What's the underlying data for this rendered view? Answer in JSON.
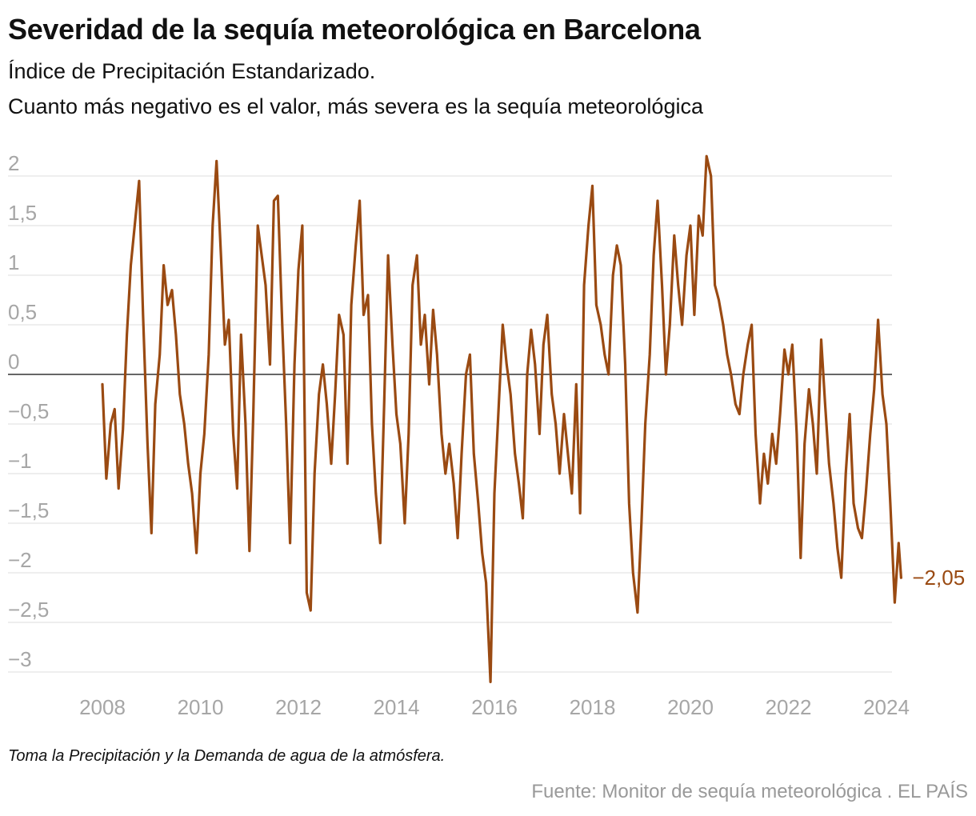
{
  "title": "Severidad de la sequía meteorológica en Barcelona",
  "subtitle_line1": "Índice de Precipitación Estandarizado.",
  "subtitle_line2": "Cuanto más negativo es el valor, más severa es la sequía meteorológica",
  "note": "Toma la Precipitación y la Demanda de agua de la atmósfera.",
  "source": "Fuente: Monitor de sequía meteorológica . EL PAÍS",
  "colors": {
    "line": "#9a4a12",
    "zero_line": "#333333",
    "grid": "#dddddd",
    "tick_text": "#a6a6a6",
    "end_label": "#9a4a12"
  },
  "chart_data": {
    "type": "line",
    "title": "Severidad de la sequía meteorológica en Barcelona",
    "xlabel": "",
    "ylabel": "",
    "xlim": [
      2008,
      2024
    ],
    "ylim": [
      -3.2,
      2.2
    ],
    "grid": true,
    "y_ticks": [
      2,
      1.5,
      1,
      0.5,
      0,
      -0.5,
      -1,
      -1.5,
      -2,
      -2.5,
      -3
    ],
    "y_tick_labels": [
      "2",
      "1,5",
      "1",
      "0,5",
      "0",
      "−0,5",
      "−1",
      "−1,5",
      "−2",
      "−2,5",
      "−3"
    ],
    "x_ticks": [
      2008,
      2010,
      2012,
      2014,
      2016,
      2018,
      2020,
      2022,
      2024
    ],
    "x_tick_labels": [
      "2008",
      "2010",
      "2012",
      "2014",
      "2016",
      "2018",
      "2020",
      "2022",
      "2024"
    ],
    "end_label": "−2,05",
    "series": [
      {
        "points": [
          [
            2008.0,
            -0.1
          ],
          [
            2008.08,
            -1.05
          ],
          [
            2008.17,
            -0.5
          ],
          [
            2008.25,
            -0.35
          ],
          [
            2008.33,
            -1.15
          ],
          [
            2008.42,
            -0.55
          ],
          [
            2008.5,
            0.4
          ],
          [
            2008.58,
            1.1
          ],
          [
            2008.67,
            1.55
          ],
          [
            2008.75,
            1.95
          ],
          [
            2008.83,
            0.6
          ],
          [
            2008.92,
            -0.7
          ],
          [
            2009.0,
            -1.6
          ],
          [
            2009.08,
            -0.3
          ],
          [
            2009.17,
            0.2
          ],
          [
            2009.25,
            1.1
          ],
          [
            2009.33,
            0.7
          ],
          [
            2009.42,
            0.85
          ],
          [
            2009.5,
            0.4
          ],
          [
            2009.58,
            -0.2
          ],
          [
            2009.67,
            -0.5
          ],
          [
            2009.75,
            -0.9
          ],
          [
            2009.83,
            -1.2
          ],
          [
            2009.92,
            -1.8
          ],
          [
            2010.0,
            -1.0
          ],
          [
            2010.08,
            -0.6
          ],
          [
            2010.17,
            0.2
          ],
          [
            2010.25,
            1.5
          ],
          [
            2010.33,
            2.15
          ],
          [
            2010.42,
            1.2
          ],
          [
            2010.5,
            0.3
          ],
          [
            2010.58,
            0.55
          ],
          [
            2010.67,
            -0.6
          ],
          [
            2010.75,
            -1.15
          ],
          [
            2010.83,
            0.4
          ],
          [
            2010.92,
            -0.5
          ],
          [
            2011.0,
            -1.78
          ],
          [
            2011.08,
            -0.4
          ],
          [
            2011.17,
            1.5
          ],
          [
            2011.25,
            1.2
          ],
          [
            2011.33,
            0.9
          ],
          [
            2011.42,
            0.1
          ],
          [
            2011.5,
            1.75
          ],
          [
            2011.58,
            1.8
          ],
          [
            2011.67,
            0.5
          ],
          [
            2011.75,
            -0.5
          ],
          [
            2011.83,
            -1.7
          ],
          [
            2011.92,
            0.1
          ],
          [
            2012.0,
            1.05
          ],
          [
            2012.08,
            1.5
          ],
          [
            2012.17,
            -2.2
          ],
          [
            2012.25,
            -2.38
          ],
          [
            2012.33,
            -1.0
          ],
          [
            2012.42,
            -0.2
          ],
          [
            2012.5,
            0.1
          ],
          [
            2012.58,
            -0.3
          ],
          [
            2012.67,
            -0.9
          ],
          [
            2012.75,
            -0.2
          ],
          [
            2012.83,
            0.6
          ],
          [
            2012.92,
            0.4
          ],
          [
            2013.0,
            -0.9
          ],
          [
            2013.08,
            0.7
          ],
          [
            2013.17,
            1.3
          ],
          [
            2013.25,
            1.75
          ],
          [
            2013.33,
            0.6
          ],
          [
            2013.42,
            0.8
          ],
          [
            2013.5,
            -0.5
          ],
          [
            2013.58,
            -1.2
          ],
          [
            2013.67,
            -1.7
          ],
          [
            2013.75,
            -0.3
          ],
          [
            2013.83,
            1.2
          ],
          [
            2013.92,
            0.3
          ],
          [
            2014.0,
            -0.4
          ],
          [
            2014.08,
            -0.7
          ],
          [
            2014.17,
            -1.5
          ],
          [
            2014.25,
            -0.6
          ],
          [
            2014.33,
            0.9
          ],
          [
            2014.42,
            1.2
          ],
          [
            2014.5,
            0.3
          ],
          [
            2014.58,
            0.6
          ],
          [
            2014.67,
            -0.1
          ],
          [
            2014.75,
            0.65
          ],
          [
            2014.83,
            0.2
          ],
          [
            2014.92,
            -0.6
          ],
          [
            2015.0,
            -1.0
          ],
          [
            2015.08,
            -0.7
          ],
          [
            2015.17,
            -1.1
          ],
          [
            2015.25,
            -1.65
          ],
          [
            2015.33,
            -0.8
          ],
          [
            2015.42,
            0.0
          ],
          [
            2015.5,
            0.2
          ],
          [
            2015.58,
            -0.8
          ],
          [
            2015.67,
            -1.3
          ],
          [
            2015.75,
            -1.8
          ],
          [
            2015.83,
            -2.1
          ],
          [
            2015.92,
            -3.1
          ],
          [
            2016.0,
            -1.2
          ],
          [
            2016.08,
            -0.4
          ],
          [
            2016.17,
            0.5
          ],
          [
            2016.25,
            0.1
          ],
          [
            2016.33,
            -0.2
          ],
          [
            2016.42,
            -0.8
          ],
          [
            2016.5,
            -1.1
          ],
          [
            2016.58,
            -1.45
          ],
          [
            2016.67,
            0.0
          ],
          [
            2016.75,
            0.45
          ],
          [
            2016.83,
            0.1
          ],
          [
            2016.92,
            -0.6
          ],
          [
            2017.0,
            0.3
          ],
          [
            2017.08,
            0.6
          ],
          [
            2017.17,
            -0.2
          ],
          [
            2017.25,
            -0.5
          ],
          [
            2017.33,
            -1.0
          ],
          [
            2017.42,
            -0.4
          ],
          [
            2017.5,
            -0.8
          ],
          [
            2017.58,
            -1.2
          ],
          [
            2017.67,
            -0.1
          ],
          [
            2017.75,
            -1.4
          ],
          [
            2017.83,
            0.9
          ],
          [
            2017.92,
            1.5
          ],
          [
            2018.0,
            1.9
          ],
          [
            2018.08,
            0.7
          ],
          [
            2018.17,
            0.5
          ],
          [
            2018.25,
            0.2
          ],
          [
            2018.33,
            0.0
          ],
          [
            2018.42,
            1.0
          ],
          [
            2018.5,
            1.3
          ],
          [
            2018.58,
            1.1
          ],
          [
            2018.67,
            0.1
          ],
          [
            2018.75,
            -1.3
          ],
          [
            2018.83,
            -2.0
          ],
          [
            2018.92,
            -2.4
          ],
          [
            2019.0,
            -1.5
          ],
          [
            2019.08,
            -0.5
          ],
          [
            2019.17,
            0.2
          ],
          [
            2019.25,
            1.2
          ],
          [
            2019.33,
            1.75
          ],
          [
            2019.42,
            0.9
          ],
          [
            2019.5,
            0.0
          ],
          [
            2019.58,
            0.5
          ],
          [
            2019.67,
            1.4
          ],
          [
            2019.75,
            0.9
          ],
          [
            2019.83,
            0.5
          ],
          [
            2019.92,
            1.2
          ],
          [
            2020.0,
            1.5
          ],
          [
            2020.08,
            0.6
          ],
          [
            2020.17,
            1.6
          ],
          [
            2020.25,
            1.4
          ],
          [
            2020.33,
            2.2
          ],
          [
            2020.42,
            2.0
          ],
          [
            2020.5,
            0.9
          ],
          [
            2020.58,
            0.75
          ],
          [
            2020.67,
            0.5
          ],
          [
            2020.75,
            0.2
          ],
          [
            2020.83,
            0.0
          ],
          [
            2020.92,
            -0.3
          ],
          [
            2021.0,
            -0.4
          ],
          [
            2021.08,
            0.0
          ],
          [
            2021.17,
            0.3
          ],
          [
            2021.25,
            0.5
          ],
          [
            2021.33,
            -0.6
          ],
          [
            2021.42,
            -1.3
          ],
          [
            2021.5,
            -0.8
          ],
          [
            2021.58,
            -1.1
          ],
          [
            2021.67,
            -0.6
          ],
          [
            2021.75,
            -0.9
          ],
          [
            2021.83,
            -0.4
          ],
          [
            2021.92,
            0.25
          ],
          [
            2022.0,
            0.0
          ],
          [
            2022.08,
            0.3
          ],
          [
            2022.17,
            -0.6
          ],
          [
            2022.25,
            -1.85
          ],
          [
            2022.33,
            -0.7
          ],
          [
            2022.42,
            -0.15
          ],
          [
            2022.5,
            -0.5
          ],
          [
            2022.58,
            -1.0
          ],
          [
            2022.67,
            0.35
          ],
          [
            2022.75,
            -0.3
          ],
          [
            2022.83,
            -0.9
          ],
          [
            2022.92,
            -1.3
          ],
          [
            2023.0,
            -1.75
          ],
          [
            2023.08,
            -2.05
          ],
          [
            2023.17,
            -1.0
          ],
          [
            2023.25,
            -0.4
          ],
          [
            2023.33,
            -1.3
          ],
          [
            2023.42,
            -1.55
          ],
          [
            2023.5,
            -1.65
          ],
          [
            2023.58,
            -1.2
          ],
          [
            2023.67,
            -0.6
          ],
          [
            2023.75,
            -0.15
          ],
          [
            2023.83,
            0.55
          ],
          [
            2023.92,
            -0.2
          ],
          [
            2024.0,
            -0.5
          ],
          [
            2024.08,
            -1.3
          ],
          [
            2024.17,
            -2.3
          ],
          [
            2024.25,
            -1.7
          ],
          [
            2024.3,
            -2.05
          ]
        ]
      }
    ]
  }
}
